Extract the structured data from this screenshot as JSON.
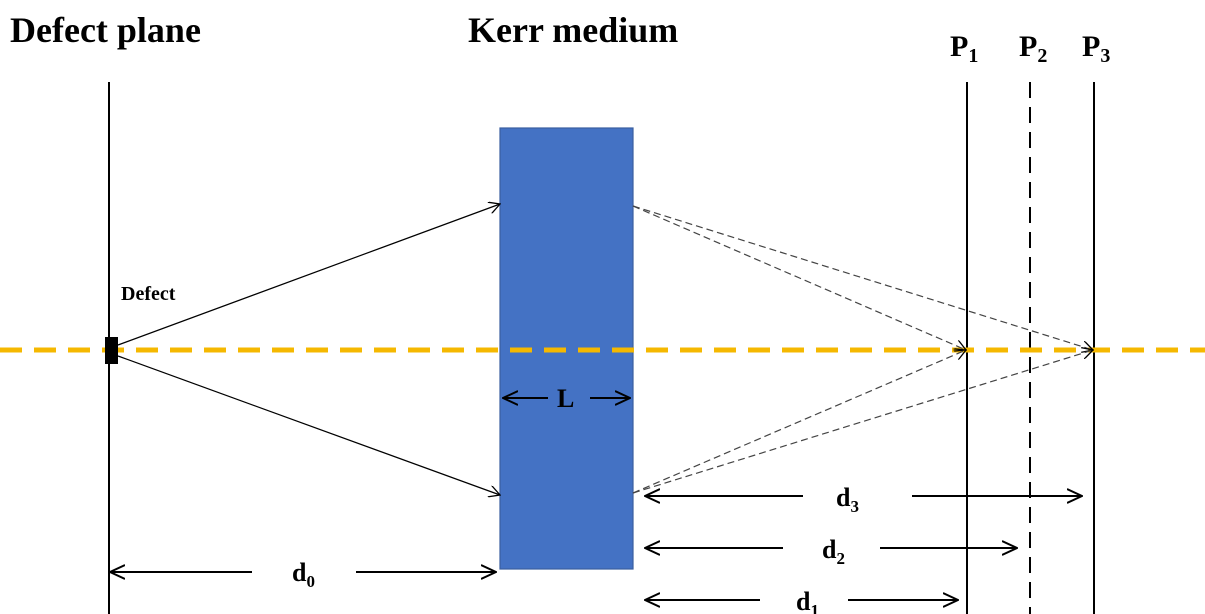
{
  "labels": {
    "defect_plane": "Defect plane",
    "kerr_medium": "Kerr medium",
    "defect": "Defect",
    "medium_length": "L"
  },
  "planes": [
    {
      "letter": "P",
      "sub": "1"
    },
    {
      "letter": "P",
      "sub": "2"
    },
    {
      "letter": "P",
      "sub": "3"
    }
  ],
  "distances": [
    {
      "letter": "d",
      "sub": "0"
    },
    {
      "letter": "d",
      "sub": "1"
    },
    {
      "letter": "d",
      "sub": "2"
    },
    {
      "letter": "d",
      "sub": "3"
    }
  ],
  "colors": {
    "medium": "#4472c4",
    "optical_axis": "#f5b800",
    "lines": "#000000"
  }
}
